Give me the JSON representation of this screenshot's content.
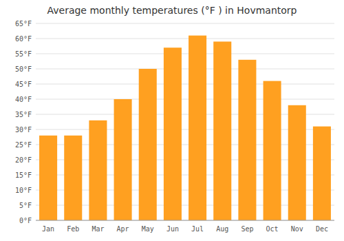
{
  "chart_data": {
    "type": "bar",
    "title": "Average monthly temperatures (°F ) in Hovmantorp",
    "categories": [
      "Jan",
      "Feb",
      "Mar",
      "Apr",
      "May",
      "Jun",
      "Jul",
      "Aug",
      "Sep",
      "Oct",
      "Nov",
      "Dec"
    ],
    "values": [
      28,
      28,
      33,
      40,
      50,
      57,
      61,
      59,
      53,
      46,
      38,
      31
    ],
    "color": "#FFA020",
    "ylim": [
      0,
      65
    ],
    "yticks": [
      {
        "value": 0,
        "label": "0°F"
      },
      {
        "value": 5,
        "label": "5°F"
      },
      {
        "value": 10,
        "label": "10°F"
      },
      {
        "value": 15,
        "label": "15°F"
      },
      {
        "value": 20,
        "label": "20°F"
      },
      {
        "value": 25,
        "label": "25°F"
      },
      {
        "value": 30,
        "label": "30°F"
      },
      {
        "value": 35,
        "label": "35°F"
      },
      {
        "value": 40,
        "label": "40°F"
      },
      {
        "value": 45,
        "label": "45°F"
      },
      {
        "value": 50,
        "label": "50°F"
      },
      {
        "value": 55,
        "label": "55°F"
      },
      {
        "value": 60,
        "label": "60°F"
      },
      {
        "value": 65,
        "label": "65°F"
      }
    ],
    "grid": true
  }
}
